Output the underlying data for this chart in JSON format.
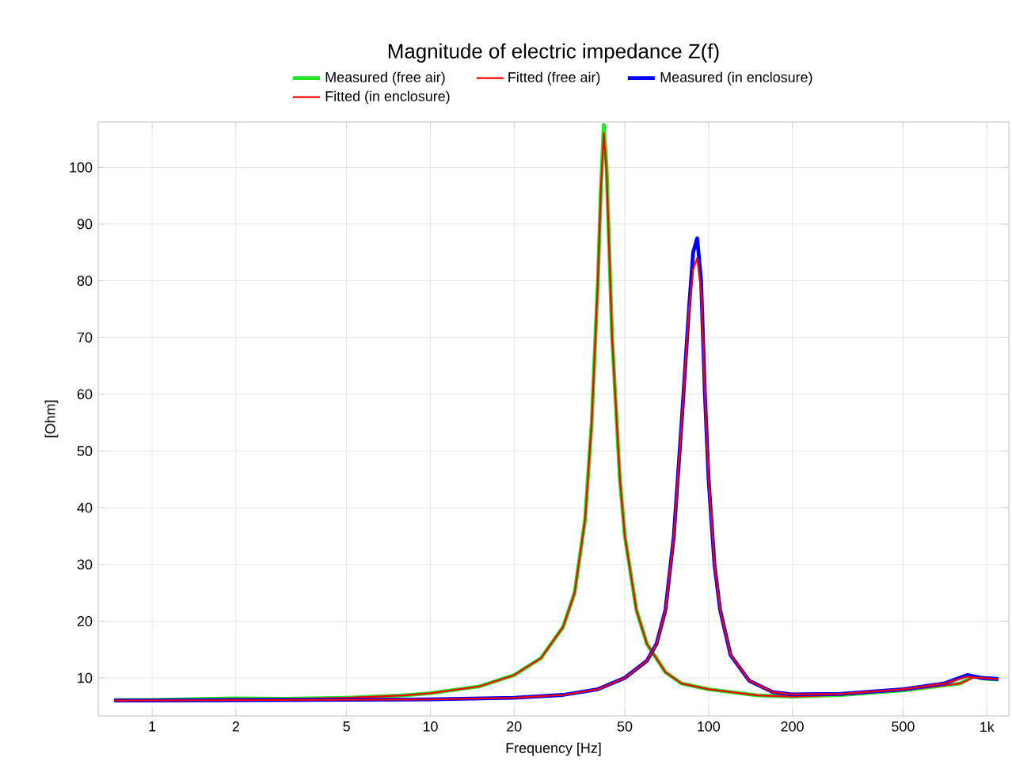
{
  "chart_data": {
    "type": "line",
    "title": "Magnitude of electric impedance Z(f)",
    "xlabel": "Frequency [Hz]",
    "ylabel": "[Ohm]",
    "log": "x",
    "grid": true,
    "legend": "top",
    "line_style": "solid",
    "xlim": [
      0.64,
      1200
    ],
    "ylim": [
      3.3,
      108
    ],
    "xticks": [
      1,
      2,
      5,
      10,
      20,
      50,
      100,
      200,
      500,
      {
        "value": 1000,
        "label": "1k"
      }
    ],
    "yticks": [
      10,
      20,
      30,
      40,
      50,
      60,
      70,
      80,
      90,
      100
    ],
    "series": [
      {
        "name": "Measured (free air)",
        "color": "#22e822",
        "x": [
          0.73,
          1,
          2,
          3,
          5,
          8,
          10,
          15,
          20,
          25,
          30,
          33,
          36,
          38,
          40,
          41,
          42,
          43,
          45,
          48,
          50,
          55,
          60,
          70,
          80,
          100,
          150,
          200,
          300,
          500,
          800,
          900,
          1000,
          1100
        ],
        "values": [
          6.1,
          6.1,
          6.4,
          6.3,
          6.5,
          6.9,
          7.3,
          8.5,
          10.5,
          13.5,
          19,
          25,
          38,
          55,
          80,
          96,
          107.5,
          100,
          70,
          45,
          35,
          22,
          16,
          11,
          9,
          8,
          6.9,
          6.7,
          7.0,
          7.8,
          9.0,
          10.3,
          9.8,
          9.7
        ]
      },
      {
        "name": "Fitted (free air)",
        "color": "#ff0000",
        "x": [
          0.73,
          1,
          2,
          3,
          5,
          8,
          10,
          15,
          20,
          25,
          30,
          33,
          36,
          38,
          40,
          41,
          42,
          43,
          45,
          48,
          50,
          55,
          60,
          70,
          80,
          100,
          150,
          200,
          300,
          500,
          800,
          900,
          1000,
          1100
        ],
        "values": [
          6.0,
          6.1,
          6.3,
          6.3,
          6.5,
          6.9,
          7.3,
          8.5,
          10.5,
          13.5,
          19,
          25,
          38,
          55,
          80,
          96,
          106,
          99,
          70,
          45,
          35,
          22,
          16,
          11,
          9,
          8,
          6.9,
          6.7,
          7.0,
          7.8,
          9.0,
          10.1,
          9.8,
          9.7
        ]
      },
      {
        "name": "Measured (in enclosure)",
        "color": "#0000ff",
        "x": [
          0.73,
          10,
          20,
          30,
          40,
          50,
          60,
          65,
          70,
          75,
          80,
          85,
          88,
          91,
          94,
          97,
          100,
          105,
          110,
          120,
          140,
          170,
          200,
          300,
          500,
          700,
          850,
          950,
          1100
        ],
        "values": [
          6.0,
          6.2,
          6.5,
          7.0,
          8,
          10,
          13,
          16,
          22,
          35,
          55,
          75,
          85,
          87.5,
          80,
          60,
          45,
          30,
          22,
          14,
          9.5,
          7.5,
          7.1,
          7.2,
          8,
          9,
          10.5,
          10,
          9.8
        ]
      },
      {
        "name": "Fitted (in enclosure)",
        "color": "#ff0000",
        "x": [
          0.73,
          10,
          20,
          30,
          40,
          50,
          60,
          65,
          70,
          75,
          80,
          85,
          88,
          91,
          94,
          97,
          100,
          105,
          110,
          120,
          140,
          170,
          200,
          300,
          500,
          700,
          850,
          950,
          1100
        ],
        "values": [
          6.0,
          6.2,
          6.5,
          7.0,
          8,
          10,
          13,
          16,
          22,
          35,
          55,
          75,
          82,
          84,
          78,
          60,
          45,
          30,
          22,
          14,
          9.5,
          7.5,
          7.1,
          7.2,
          8,
          9,
          10.2,
          10,
          9.8
        ]
      }
    ]
  }
}
